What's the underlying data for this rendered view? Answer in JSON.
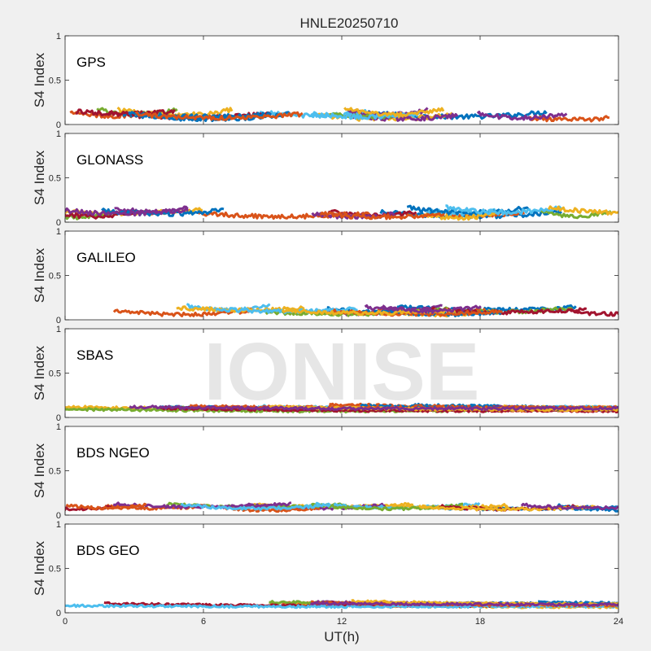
{
  "figure": {
    "title": "HNLE20250710",
    "xlabel": "UT(h)",
    "watermark": "IONISE"
  },
  "chart_data": [
    {
      "type": "line",
      "panel_label": "GPS",
      "ylabel": "S4 Index",
      "xlim": [
        0,
        24
      ],
      "ylim": [
        0,
        1
      ],
      "x_ticks": [
        0,
        6,
        12,
        18,
        24
      ],
      "y_ticks": [
        0,
        0.5,
        1
      ],
      "approx_s4_range": [
        0.02,
        0.22
      ]
    },
    {
      "type": "line",
      "panel_label": "GLONASS",
      "ylabel": "S4 Index",
      "xlim": [
        0,
        24
      ],
      "ylim": [
        0,
        1
      ],
      "x_ticks": [
        0,
        6,
        12,
        18,
        24
      ],
      "y_ticks": [
        0,
        0.5,
        1
      ],
      "approx_s4_range": [
        0.02,
        0.22
      ]
    },
    {
      "type": "line",
      "panel_label": "GALILEO",
      "ylabel": "S4 Index",
      "xlim": [
        0,
        24
      ],
      "ylim": [
        0,
        1
      ],
      "x_ticks": [
        0,
        6,
        12,
        18,
        24
      ],
      "y_ticks": [
        0,
        0.5,
        1
      ],
      "approx_s4_range": [
        0.03,
        0.2
      ]
    },
    {
      "type": "line",
      "panel_label": "SBAS",
      "ylabel": "S4 Index",
      "xlim": [
        0,
        24
      ],
      "ylim": [
        0,
        1
      ],
      "x_ticks": [
        0,
        6,
        12,
        18,
        24
      ],
      "y_ticks": [
        0,
        0.5,
        1
      ],
      "approx_s4_range": [
        0.05,
        0.17
      ]
    },
    {
      "type": "line",
      "panel_label": "BDS NGEO",
      "ylabel": "S4 Index",
      "xlim": [
        0,
        24
      ],
      "ylim": [
        0,
        1
      ],
      "x_ticks": [
        0,
        6,
        12,
        18,
        24
      ],
      "y_ticks": [
        0,
        0.5,
        1
      ],
      "approx_s4_range": [
        0.03,
        0.16
      ]
    },
    {
      "type": "line",
      "panel_label": "BDS GEO",
      "ylabel": "S4 Index",
      "xlim": [
        0,
        24
      ],
      "ylim": [
        0,
        1
      ],
      "x_ticks": [
        0,
        6,
        12,
        18,
        24
      ],
      "y_ticks": [
        0,
        0.5,
        1
      ],
      "approx_s4_range": [
        0.05,
        0.15
      ]
    }
  ],
  "series_colors": [
    "#0072BD",
    "#D95319",
    "#EDB120",
    "#7E2F8E",
    "#77AC30",
    "#4DBEEE",
    "#A2142F"
  ]
}
